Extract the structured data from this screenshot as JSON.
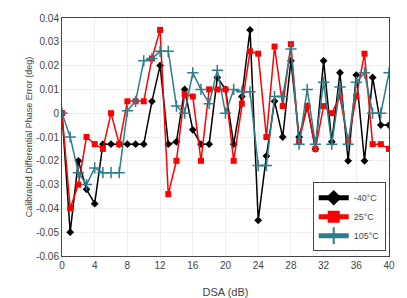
{
  "chart_data": {
    "type": "line",
    "xlabel": "DSA (dB)",
    "ylabel": "Calibrated Differential Phase Error (deg)",
    "x": [
      0,
      1,
      2,
      3,
      4,
      5,
      6,
      7,
      8,
      9,
      10,
      11,
      12,
      13,
      14,
      15,
      16,
      17,
      18,
      19,
      20,
      21,
      22,
      23,
      24,
      25,
      26,
      27,
      28,
      29,
      30,
      31,
      32,
      33,
      34,
      35,
      36,
      37,
      38,
      39,
      40
    ],
    "series": [
      {
        "name": "-40°C",
        "color": "#000000",
        "marker": "diamond",
        "values": [
          0.0,
          -0.05,
          -0.02,
          -0.032,
          -0.038,
          -0.013,
          -0.013,
          -0.013,
          -0.013,
          -0.013,
          -0.013,
          0.005,
          0.02,
          -0.013,
          -0.012,
          0.01,
          -0.007,
          -0.013,
          -0.013,
          0.015,
          0.01,
          -0.013,
          0.007,
          0.035,
          -0.045,
          -0.018,
          0.005,
          -0.01,
          0.022,
          -0.01,
          0.003,
          -0.015,
          0.022,
          -0.012,
          0.017,
          -0.02,
          0.016,
          -0.02,
          0.015,
          -0.005,
          -0.005
        ]
      },
      {
        "name": "25°C",
        "color": "#ff0000",
        "marker": "square",
        "values": [
          0.0,
          -0.04,
          -0.03,
          -0.01,
          -0.013,
          -0.015,
          0.0,
          -0.013,
          0.005,
          0.005,
          0.005,
          0.023,
          0.035,
          -0.034,
          -0.02,
          0.008,
          0.007,
          -0.02,
          0.01,
          0.01,
          0.01,
          -0.02,
          0.004,
          0.026,
          0.025,
          -0.01,
          0.028,
          0.003,
          0.029,
          -0.012,
          0.003,
          -0.015,
          0.003,
          0.0,
          0.007,
          -0.012,
          0.007,
          0.025,
          -0.013,
          -0.013,
          -0.015
        ]
      },
      {
        "name": "105°C",
        "color": "#2e7d8a",
        "marker": "plus",
        "values": [
          0.0,
          -0.01,
          -0.025,
          -0.03,
          -0.023,
          -0.025,
          -0.025,
          -0.025,
          0.001,
          0.005,
          0.022,
          0.023,
          0.026,
          0.026,
          0.003,
          0.0,
          0.017,
          0.01,
          0.004,
          0.018,
          0.0,
          0.01,
          0.009,
          0.009,
          -0.022,
          -0.022,
          0.007,
          0.007,
          0.027,
          -0.013,
          0.01,
          -0.013,
          0.013,
          -0.013,
          0.011,
          -0.013,
          0.013,
          0.017,
          0.0,
          0.0,
          0.017
        ]
      }
    ],
    "xlim": [
      0,
      40
    ],
    "ylim": [
      -0.06,
      0.04
    ],
    "xticks": [
      0,
      4,
      8,
      12,
      16,
      20,
      24,
      28,
      32,
      36,
      40
    ],
    "yticks": [
      -0.06,
      -0.05,
      -0.04,
      -0.03,
      -0.02,
      -0.01,
      0,
      0.01,
      0.02,
      0.03,
      0.04
    ],
    "grid": true,
    "legend": "lower right"
  }
}
